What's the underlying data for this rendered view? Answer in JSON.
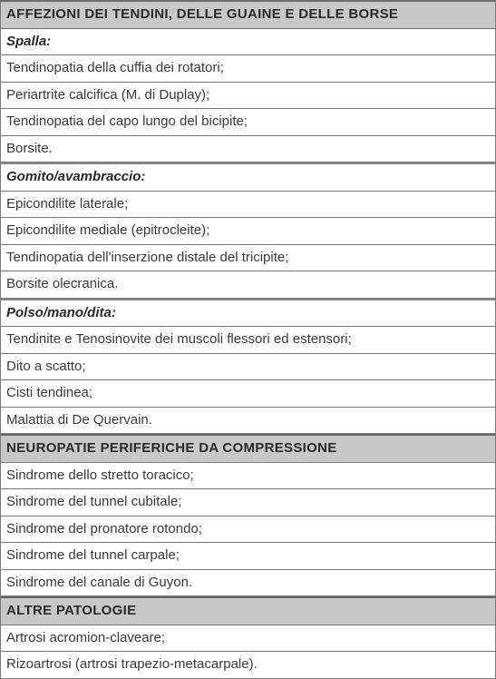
{
  "sections": [
    {
      "title": "AFFEZIONI DEI TENDINI, DELLE GUAINE E DELLE BORSE",
      "groups": [
        {
          "label": "Spalla:",
          "items": [
            "Tendinopatia della cuffia dei rotatori;",
            "Periartrite calcifica (M. di Duplay);",
            "Tendinopatia del capo lungo del bicipite;",
            "Borsite."
          ]
        },
        {
          "label": "Gomito/avambraccio:",
          "items": [
            "Epicondilite laterale;",
            "Epicondilite mediale (epitrocleite);",
            "Tendinopatia dell'inserzione distale del tricipite;",
            "Borsite olecranica."
          ]
        },
        {
          "label": "Polso/mano/dita:",
          "items": [
            "Tendinite e Tenosinovite dei muscoli flessori ed estensori;",
            "Dito a scatto;",
            "Cisti tendinea;",
            "Malattia di De Quervain."
          ]
        }
      ]
    },
    {
      "title": "NEUROPATIE PERIFERICHE DA COMPRESSIONE",
      "groups": [
        {
          "label": null,
          "items": [
            "Sindrome dello stretto toracico;",
            "Sindrome del tunnel cubitale;",
            "Sindrome del pronatore rotondo;",
            "Sindrome del tunnel carpale;",
            "Sindrome del canale di Guyon."
          ]
        }
      ]
    },
    {
      "title": "ALTRE PATOLOGIE",
      "groups": [
        {
          "label": null,
          "items": [
            "Artrosi acromion-claveare;",
            "Rizoartrosi (artrosi trapezio-metacarpale)."
          ]
        }
      ]
    }
  ],
  "colors": {
    "header_bg": "#c8c8c8",
    "border": "#7a7a7a",
    "text": "#3a3a3a"
  }
}
